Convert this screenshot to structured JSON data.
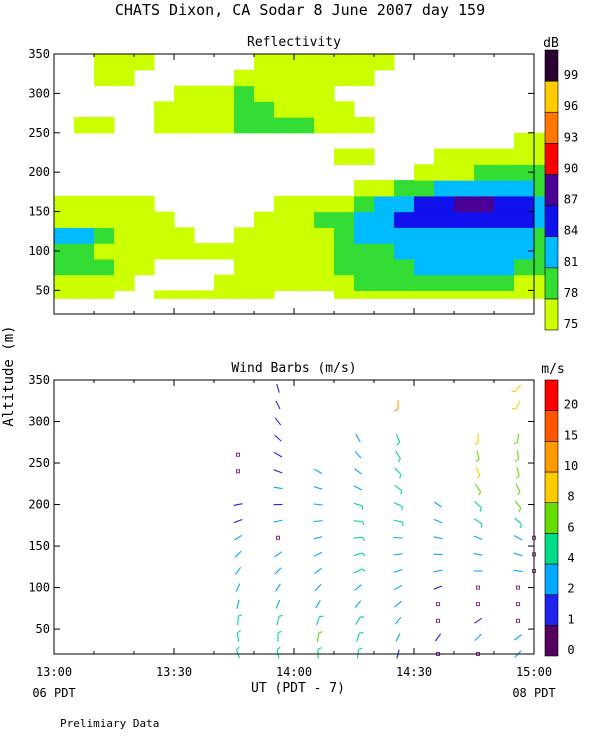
{
  "title": "CHATS Dixon, CA  Sodar   8 June 2007  day 159",
  "footer_note": "Prelimiary Data",
  "ylabel": "Altitude (m)",
  "xlabel": "UT  (PDT - 7)",
  "date_left": "06 PDT",
  "date_right": "08 PDT",
  "x_ticks": [
    {
      "t": 0,
      "label": "13:00"
    },
    {
      "t": 30,
      "label": "13:30"
    },
    {
      "t": 60,
      "label": "14:00"
    },
    {
      "t": 90,
      "label": "14:30"
    },
    {
      "t": 120,
      "label": "15:00"
    }
  ],
  "chart_data": [
    {
      "type": "heatmap",
      "title": "Reflectivity",
      "colorbar": {
        "unit": "dB",
        "levels": [
          75,
          78,
          81,
          84,
          87,
          90,
          93,
          96,
          99
        ],
        "colors": [
          "#ccff00",
          "#33dd33",
          "#00bbff",
          "#1111ee",
          "#4b0096",
          "#ff0000",
          "#ff7700",
          "#ffcc00",
          "#2b0030"
        ]
      },
      "xlim": [
        0,
        120
      ],
      "ylim": [
        20,
        350
      ],
      "y_ticks": [
        50,
        100,
        150,
        200,
        250,
        300,
        350
      ],
      "x_step": 5,
      "y_levels": [
        40,
        60,
        80,
        100,
        120,
        140,
        160,
        180,
        200,
        220,
        240,
        260,
        280,
        300,
        320,
        340
      ],
      "rows": [
        [
          1,
          1,
          1,
          0,
          0,
          1,
          1,
          1,
          1,
          1,
          1,
          0,
          0,
          0,
          1,
          1,
          1,
          1,
          1,
          1,
          1,
          1,
          1,
          1,
          1
        ],
        [
          1,
          1,
          1,
          1,
          0,
          0,
          0,
          0,
          1,
          1,
          1,
          1,
          1,
          1,
          1,
          2,
          2,
          2,
          2,
          2,
          2,
          2,
          2,
          1,
          1
        ],
        [
          2,
          2,
          2,
          1,
          1,
          0,
          0,
          0,
          0,
          1,
          1,
          1,
          1,
          1,
          2,
          2,
          2,
          2,
          3,
          3,
          3,
          3,
          3,
          2,
          2
        ],
        [
          2,
          2,
          1,
          1,
          1,
          1,
          1,
          1,
          1,
          1,
          1,
          1,
          1,
          1,
          2,
          2,
          2,
          3,
          3,
          3,
          3,
          3,
          3,
          3,
          2
        ],
        [
          3,
          3,
          2,
          1,
          1,
          1,
          1,
          0,
          0,
          1,
          1,
          1,
          1,
          1,
          2,
          3,
          3,
          3,
          3,
          3,
          3,
          3,
          3,
          3,
          2
        ],
        [
          1,
          1,
          1,
          1,
          1,
          1,
          0,
          0,
          0,
          0,
          1,
          1,
          1,
          2,
          2,
          3,
          3,
          4,
          4,
          4,
          4,
          4,
          4,
          4,
          3
        ],
        [
          1,
          1,
          1,
          1,
          1,
          0,
          0,
          0,
          0,
          0,
          0,
          1,
          1,
          1,
          1,
          2,
          3,
          3,
          4,
          4,
          5,
          5,
          4,
          4,
          3
        ],
        [
          0,
          0,
          0,
          0,
          0,
          0,
          0,
          0,
          0,
          0,
          0,
          0,
          0,
          0,
          0,
          1,
          1,
          2,
          2,
          3,
          3,
          3,
          3,
          3,
          2
        ],
        [
          0,
          0,
          0,
          0,
          0,
          0,
          0,
          0,
          0,
          0,
          0,
          0,
          0,
          0,
          0,
          0,
          0,
          0,
          1,
          1,
          1,
          2,
          2,
          2,
          2
        ],
        [
          0,
          0,
          0,
          0,
          0,
          0,
          0,
          0,
          0,
          0,
          0,
          0,
          0,
          0,
          1,
          1,
          0,
          0,
          0,
          1,
          1,
          1,
          1,
          1,
          1
        ],
        [
          0,
          0,
          0,
          0,
          0,
          0,
          0,
          0,
          0,
          0,
          0,
          0,
          0,
          0,
          0,
          0,
          0,
          0,
          0,
          0,
          0,
          0,
          0,
          1,
          1
        ],
        [
          0,
          1,
          1,
          0,
          0,
          1,
          1,
          1,
          1,
          2,
          2,
          2,
          2,
          1,
          1,
          1,
          0,
          0,
          0,
          0,
          0,
          0,
          0,
          0,
          0
        ],
        [
          0,
          0,
          0,
          0,
          0,
          1,
          1,
          1,
          1,
          2,
          2,
          1,
          1,
          1,
          1,
          0,
          0,
          0,
          0,
          0,
          0,
          0,
          0,
          0,
          0
        ],
        [
          0,
          0,
          0,
          0,
          0,
          0,
          1,
          1,
          1,
          2,
          1,
          1,
          1,
          1,
          0,
          0,
          0,
          0,
          0,
          0,
          0,
          0,
          0,
          0,
          0
        ],
        [
          0,
          0,
          1,
          1,
          0,
          0,
          0,
          0,
          0,
          1,
          1,
          1,
          1,
          1,
          1,
          1,
          0,
          0,
          0,
          0,
          0,
          0,
          0,
          0,
          0
        ],
        [
          0,
          0,
          1,
          1,
          1,
          0,
          0,
          0,
          0,
          0,
          1,
          1,
          1,
          1,
          1,
          1,
          1,
          0,
          0,
          0,
          0,
          0,
          0,
          0,
          0
        ]
      ]
    },
    {
      "type": "scatter",
      "title": "Wind Barbs (m/s)",
      "colorbar": {
        "unit": "m/s",
        "levels": [
          0,
          1,
          2,
          4,
          6,
          8,
          10,
          15,
          20
        ],
        "colors": [
          "#55005f",
          "#2222ee",
          "#00aaff",
          "#00dd88",
          "#66dd00",
          "#ffcc00",
          "#ff9900",
          "#ff5500",
          "#ff0000"
        ]
      },
      "xlim": [
        0,
        120
      ],
      "ylim": [
        20,
        350
      ],
      "y_ticks": [
        50,
        100,
        150,
        200,
        250,
        300,
        350
      ],
      "speed_max": 24,
      "columns": [
        46,
        56,
        66,
        76,
        86,
        96,
        106,
        116,
        120
      ],
      "altitudes": [
        20,
        40,
        60,
        80,
        100,
        120,
        140,
        160,
        180,
        200,
        220,
        240,
        260,
        280,
        300,
        320,
        340
      ],
      "speeds": [
        [
          5.5,
          5.2,
          4.5,
          3.2,
          3.0,
          2.6,
          2.8,
          2.2,
          1.6,
          1.4,
          null,
          0.3,
          0.4,
          null,
          null,
          null,
          null
        ],
        [
          5.6,
          5.4,
          4.8,
          3.6,
          2.8,
          2.3,
          2.2,
          0.4,
          2.3,
          1.8,
          2.0,
          1.2,
          1.4,
          1.5,
          1.6,
          1.7,
          1.8
        ],
        [
          5.6,
          6.0,
          5.8,
          3.8,
          3.2,
          2.6,
          3.0,
          3.4,
          2.8,
          2.6,
          3.0,
          2.9,
          null,
          null,
          null,
          null,
          null
        ],
        [
          5.8,
          5.2,
          4.6,
          3.8,
          3.8,
          4.8,
          4.4,
          4.6,
          5.0,
          4.4,
          2.2,
          2.3,
          3.3,
          3.1,
          null,
          null,
          null
        ],
        [
          1.5,
          2.2,
          2.8,
          3.0,
          3.1,
          3.4,
          3.6,
          3.8,
          4.2,
          4.3,
          4.1,
          4.2,
          4.0,
          4.1,
          null,
          10.5,
          null
        ],
        [
          0.5,
          1.3,
          0.5,
          0.4,
          1.8,
          2.5,
          2.8,
          3.4,
          3.6,
          2.9,
          null,
          null,
          null,
          null,
          null,
          null,
          null
        ],
        [
          0.5,
          2.0,
          1.0,
          0.5,
          0.6,
          2.3,
          3.8,
          3.3,
          4.8,
          5.5,
          7.5,
          8.0,
          7.5,
          8.5,
          null,
          null,
          null
        ],
        [
          3.6,
          3.8,
          0.4,
          0.4,
          0.5,
          2.4,
          3.9,
          3.7,
          4.5,
          6.0,
          6.5,
          6.4,
          6.8,
          7.2,
          null,
          9.0,
          8.5
        ],
        [
          null,
          null,
          null,
          null,
          null,
          0.5,
          0.4,
          0.5,
          null,
          null,
          null,
          null,
          3.8,
          null,
          null,
          null,
          null
        ]
      ]
    }
  ]
}
